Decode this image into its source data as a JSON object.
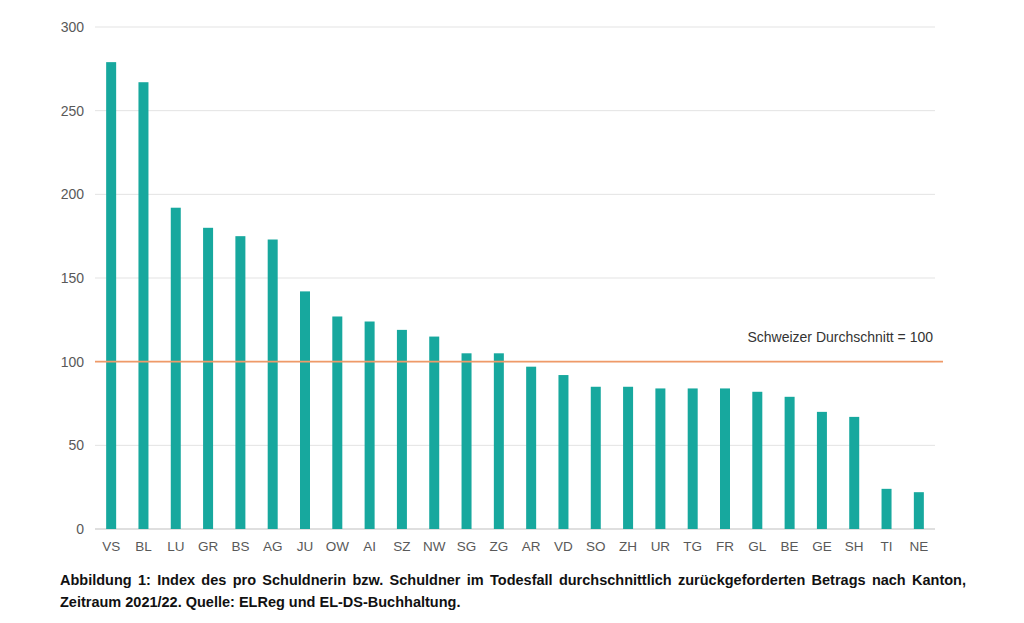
{
  "chart_data": {
    "type": "bar",
    "title": "Abbildung 1: Index des pro Schuldnerin bzw. Schuldner im Todesfall durchschnittlich zurückgeforderten Betrags nach Kanton, Zeitraum 2021/22. Quelle: ELReg und EL-DS-Buchhaltung.",
    "categories": [
      "VS",
      "BL",
      "LU",
      "GR",
      "BS",
      "AG",
      "JU",
      "OW",
      "AI",
      "SZ",
      "NW",
      "SG",
      "ZG",
      "AR",
      "VD",
      "SO",
      "ZH",
      "UR",
      "TG",
      "FR",
      "GL",
      "BE",
      "GE",
      "SH",
      "TI",
      "NE"
    ],
    "values": [
      279,
      267,
      192,
      180,
      175,
      173,
      142,
      127,
      124,
      119,
      115,
      105,
      105,
      97,
      92,
      85,
      85,
      84,
      84,
      84,
      82,
      79,
      70,
      67,
      24,
      22
    ],
    "color": "#17a89e",
    "ylim": [
      0,
      300
    ],
    "yticks": [
      0,
      50,
      100,
      150,
      200,
      250,
      300
    ],
    "grid": true,
    "annotations": [
      {
        "text": "Schweizer Durchschnitt = 100",
        "y": 100,
        "color": "#ef9a68"
      }
    ]
  }
}
